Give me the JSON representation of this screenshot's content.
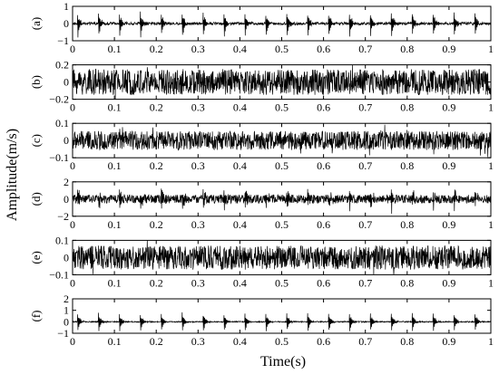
{
  "chart_data": {
    "type": "line",
    "xlabel": "Time(s)",
    "ylabel": "Amplitude(m/s)",
    "xlim": [
      0,
      1
    ],
    "x_ticks": [
      "0",
      "0.1",
      "0.2",
      "0.3",
      "0.4",
      "0.5",
      "0.6",
      "0.7",
      "0.8",
      "0.9",
      "1"
    ],
    "grid": false,
    "line_color": "#000000",
    "panels": [
      {
        "label": "(a)",
        "ylim": [
          -1,
          1
        ],
        "y_ticks": [
          "1",
          "0",
          "-1"
        ],
        "signal": "impulsive",
        "impulse_period_s": 0.05,
        "impulse_amplitude": 0.95,
        "noise_amplitude": 0.08
      },
      {
        "label": "(b)",
        "ylim": [
          -0.2,
          0.2
        ],
        "y_ticks": [
          "0.2",
          "0",
          "-0.2"
        ],
        "signal": "noise",
        "noise_amplitude": 0.15
      },
      {
        "label": "(c)",
        "ylim": [
          -0.1,
          0.1
        ],
        "y_ticks": [
          "0.1",
          "0",
          "-0.1"
        ],
        "signal": "noise",
        "noise_amplitude": 0.055
      },
      {
        "label": "(d)",
        "ylim": [
          -2,
          2
        ],
        "y_ticks": [
          "2",
          "0",
          "-2"
        ],
        "signal": "impulsive",
        "impulse_period_s": 0.05,
        "impulse_amplitude": 1.4,
        "noise_amplitude": 0.5
      },
      {
        "label": "(e)",
        "ylim": [
          -0.1,
          0.1
        ],
        "y_ticks": [
          "0.1",
          "0",
          "-0.1"
        ],
        "signal": "noise",
        "noise_amplitude": 0.07
      },
      {
        "label": "(f)",
        "ylim": [
          -1,
          2
        ],
        "y_ticks": [
          "2",
          "1",
          "0",
          "-1"
        ],
        "signal": "impulsive",
        "impulse_period_s": 0.05,
        "impulse_amplitude": 1.1,
        "noise_amplitude": 0.05
      }
    ]
  }
}
